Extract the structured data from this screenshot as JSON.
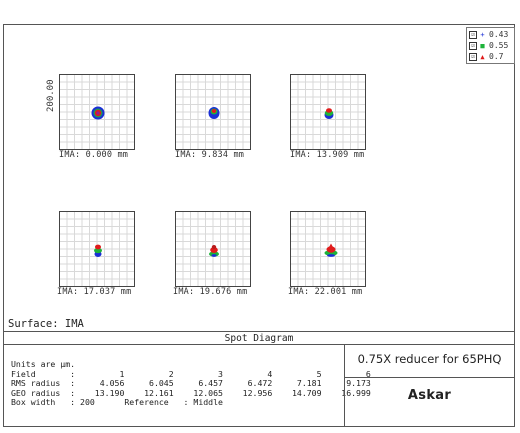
{
  "legend": [
    {
      "label": "0.43",
      "color": "#1a2fd6",
      "marker": "+"
    },
    {
      "label": "0.55",
      "color": "#1db33a",
      "marker": "■"
    },
    {
      "label": "0.7",
      "color": "#e01b1b",
      "marker": "▲"
    }
  ],
  "legend_check": "☑",
  "box_width_axis_label": "200.00",
  "spots": [
    {
      "label": "IMA: 0.000 mm",
      "dy": 0.0
    },
    {
      "label": "IMA: 9.834 mm",
      "dy": 0.0
    },
    {
      "label": "IMA: 13.909 mm",
      "dy": 0.0
    },
    {
      "label": "IMA: 17.037 mm",
      "dy": 0.0
    },
    {
      "label": "IMA: 19.676 mm",
      "dy": 0.0
    },
    {
      "label": "IMA: 22.001 mm",
      "dy": 0.0
    }
  ],
  "surface_label": "Surface: IMA",
  "panel_title": "Spot Diagram",
  "info": {
    "units": "Units are µm.",
    "field_row": "Field       :         1         2         3         4         5         6",
    "rms_row": "RMS radius  :     4.056     6.045     6.457     6.472     7.181     9.173",
    "geo_row": "GEO radius  :    13.190    12.161    12.065    12.956    14.709    16.999",
    "box_row": "Box width   : 200      Reference   : Middle"
  },
  "product_name": "0.75X reducer for 65PHQ",
  "brand": "Askar"
}
